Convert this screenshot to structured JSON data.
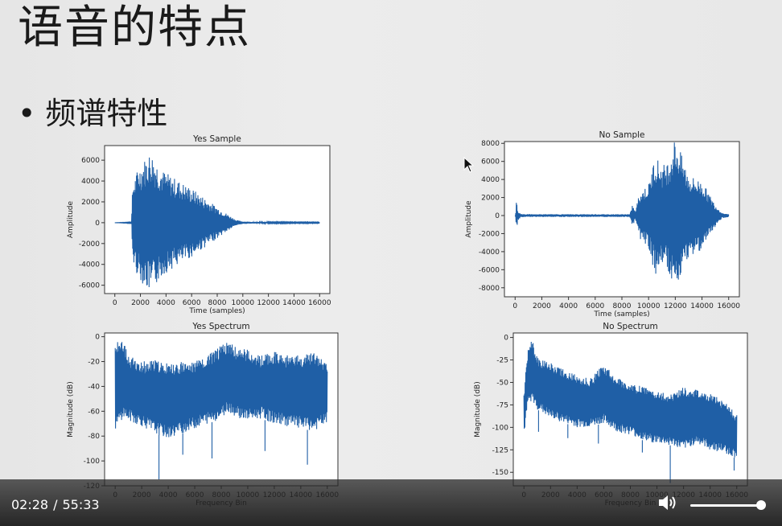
{
  "slide": {
    "title": "语音的特点",
    "bullet_symbol": "•",
    "bullet_text": "频谱特性"
  },
  "player": {
    "current_time": "02:28",
    "separator": "/",
    "duration": "55:33",
    "volume_level": 1.0,
    "volume_icon": "speaker-icon"
  },
  "colors": {
    "signal": "#1f5fa6",
    "controls_bg": "#1c1c1c"
  },
  "chart_data": [
    {
      "type": "line",
      "title": "Yes Sample",
      "xlabel": "Time (samples)",
      "ylabel": "Amplitude",
      "xlim": [
        -800,
        16800
      ],
      "ylim": [
        -6800,
        7400
      ],
      "xticks": [
        0,
        2000,
        4000,
        6000,
        8000,
        10000,
        12000,
        14000,
        16000
      ],
      "yticks": [
        -6000,
        -4000,
        -2000,
        0,
        2000,
        4000,
        6000
      ],
      "x": [
        0,
        1300,
        1400,
        1800,
        2200,
        2800,
        3200,
        3800,
        4500,
        5200,
        6000,
        7000,
        8000,
        9000,
        9500,
        10000,
        11000,
        12000,
        14000,
        16000
      ],
      "envelope": [
        0,
        50,
        3800,
        5200,
        5900,
        6900,
        6000,
        5000,
        4400,
        3900,
        3300,
        2400,
        1500,
        650,
        250,
        120,
        80,
        60,
        50,
        40
      ]
    },
    {
      "type": "line",
      "title": "No Sample",
      "xlabel": "Time (samples)",
      "ylabel": "Amplitude",
      "xlim": [
        -800,
        16800
      ],
      "ylim": [
        -9000,
        8200
      ],
      "xticks": [
        0,
        2000,
        4000,
        6000,
        8000,
        10000,
        12000,
        14000,
        16000
      ],
      "yticks": [
        -8000,
        -6000,
        -4000,
        -2000,
        0,
        2000,
        4000,
        6000,
        8000
      ],
      "x": [
        0,
        50,
        100,
        200,
        400,
        1000,
        4000,
        8600,
        8800,
        9000,
        9300,
        10000,
        10500,
        11000,
        11500,
        12000,
        12400,
        13000,
        14000,
        15000,
        15500,
        16000
      ],
      "envelope": [
        0,
        300,
        1700,
        600,
        200,
        150,
        150,
        150,
        1300,
        400,
        2500,
        3500,
        6800,
        5500,
        6200,
        8800,
        7000,
        4500,
        3800,
        1200,
        300,
        150
      ]
    },
    {
      "type": "line",
      "title": "Yes Spectrum",
      "xlabel": "Frequency Bin",
      "ylabel": "Magnitude (dB)",
      "xlim": [
        -800,
        16800
      ],
      "ylim": [
        -120,
        3
      ],
      "xticks": [
        0,
        2000,
        4000,
        6000,
        8000,
        10000,
        12000,
        14000,
        16000
      ],
      "yticks": [
        -120,
        -100,
        -80,
        -60,
        -40,
        -20,
        0
      ],
      "x": [
        0,
        300,
        600,
        1000,
        2000,
        3000,
        4000,
        5000,
        6000,
        7000,
        8000,
        8500,
        9000,
        10000,
        11000,
        12000,
        13000,
        14000,
        15000,
        16000
      ],
      "upper": [
        -5,
        -2,
        -3,
        -15,
        -20,
        -18,
        -22,
        -20,
        -20,
        -15,
        -7,
        -3,
        -8,
        -10,
        -15,
        -12,
        -15,
        -15,
        -12,
        -22
      ],
      "lower": [
        -75,
        -70,
        -65,
        -68,
        -72,
        -78,
        -82,
        -78,
        -74,
        -70,
        -66,
        -60,
        -64,
        -68,
        -66,
        -70,
        -72,
        -74,
        -76,
        -70
      ],
      "spike_x": [
        3300,
        5100,
        7300,
        11300,
        14500
      ],
      "spike_y": [
        -115,
        -95,
        -98,
        -92,
        -103
      ]
    },
    {
      "type": "line",
      "title": "No Spectrum",
      "xlabel": "Frequency Bin",
      "ylabel": "Magnitude (dB)",
      "xlim": [
        -800,
        16800
      ],
      "ylim": [
        -165,
        5
      ],
      "xticks": [
        0,
        2000,
        4000,
        6000,
        8000,
        10000,
        12000,
        14000,
        16000
      ],
      "yticks": [
        -150,
        -125,
        -100,
        -75,
        -50,
        -25,
        0
      ],
      "x": [
        0,
        300,
        600,
        1000,
        2000,
        3000,
        4000,
        5000,
        6000,
        7000,
        8000,
        9000,
        10000,
        11000,
        12000,
        13000,
        14000,
        15000,
        16000
      ],
      "upper": [
        -60,
        -12,
        -2,
        -22,
        -28,
        -35,
        -42,
        -45,
        -30,
        -45,
        -50,
        -55,
        -60,
        -62,
        -55,
        -58,
        -62,
        -70,
        -85
      ],
      "lower": [
        -110,
        -75,
        -70,
        -80,
        -90,
        -95,
        -100,
        -100,
        -95,
        -105,
        -108,
        -115,
        -118,
        -120,
        -125,
        -118,
        -125,
        -128,
        -135
      ],
      "spike_x": [
        1100,
        3300,
        5600,
        8900,
        11000,
        15800
      ],
      "spike_y": [
        -105,
        -112,
        -118,
        -128,
        -162,
        -148
      ]
    }
  ]
}
